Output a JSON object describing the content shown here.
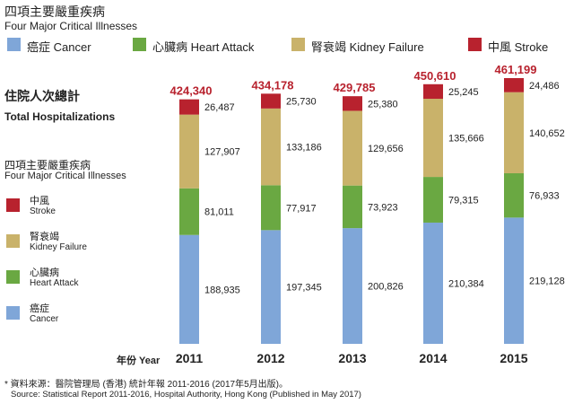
{
  "chart_data": {
    "type": "bar",
    "stacked": true,
    "title": "四項主要嚴重疾病",
    "subtitle": "Four Major Critical Illnesses",
    "categories": [
      "2011",
      "2012",
      "2013",
      "2014",
      "2015"
    ],
    "xlabel": "年份 Year",
    "total_label_zh": "住院人次總計",
    "total_label_en": "Total Hospitalizations",
    "side_legend_title_zh": "四項主要嚴重疾病",
    "side_legend_title_en": "Four Major Critical Illnesses",
    "totals": [
      424340,
      434178,
      429785,
      450610,
      461199
    ],
    "totals_text": [
      "424,340",
      "434,178",
      "429,785",
      "450,610",
      "461,199"
    ],
    "series": [
      {
        "name": "癌症 Cancer",
        "zh": "癌症",
        "en": "Cancer",
        "color": "#7fa6d8",
        "values": [
          188935,
          197345,
          200826,
          210384,
          219128
        ],
        "labels": [
          "188,935",
          "197,345",
          "200,826",
          "210,384",
          "219,128"
        ]
      },
      {
        "name": "心臟病 Heart Attack",
        "zh": "心臟病",
        "en": "Heart Attack",
        "color": "#6aa842",
        "values": [
          81011,
          77917,
          73923,
          79315,
          76933
        ],
        "labels": [
          "81,011",
          "77,917",
          "73,923",
          "79,315",
          "76,933"
        ]
      },
      {
        "name": "腎衰竭 Kidney Failure",
        "zh": "腎衰竭",
        "en": "Kidney Failure",
        "color": "#c9b26a",
        "values": [
          127907,
          133186,
          129656,
          135666,
          140652
        ],
        "labels": [
          "127,907",
          "133,186",
          "129,656",
          "135,666",
          "140,652"
        ]
      },
      {
        "name": "中風 Stroke",
        "zh": "中風",
        "en": "Stroke",
        "color": "#b8222e",
        "values": [
          26487,
          25730,
          25380,
          25245,
          24486
        ],
        "labels": [
          "26,487",
          "25,730",
          "25,380",
          "25,245",
          "24,486"
        ]
      }
    ],
    "total_color": "#b8222e",
    "legend": "top",
    "source_zh": "* 資料來源：醫院管理局 (香港) 統計年報 2011-2016 (2017年5月出版)。",
    "source_en": "Source: Statistical Report 2011-2016, Hospital Authority, Hong Kong (Published in May 2017)"
  }
}
